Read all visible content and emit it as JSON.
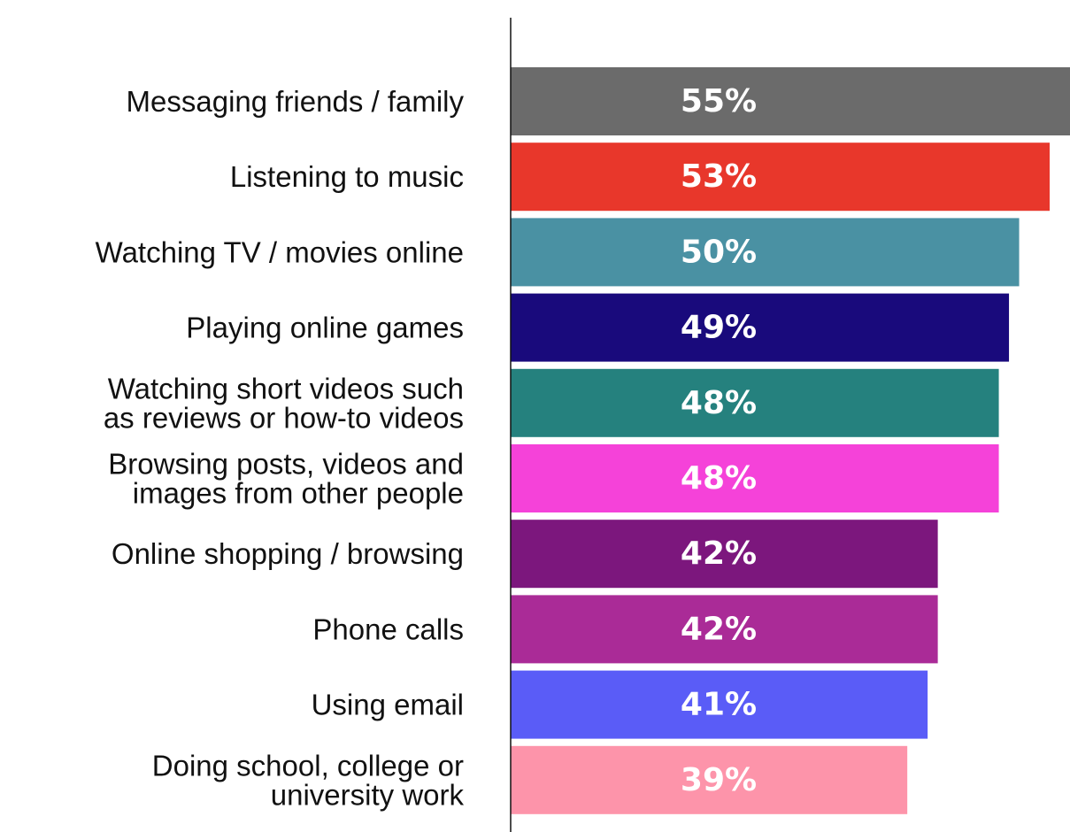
{
  "chart_data": {
    "type": "bar",
    "orientation": "horizontal",
    "title": "",
    "xlabel": "",
    "ylabel": "",
    "xlim": [
      0,
      55
    ],
    "grid": false,
    "legend": "none",
    "categories": [
      [
        "Messaging friends / family"
      ],
      [
        "Listening to music"
      ],
      [
        "Watching TV / movies online"
      ],
      [
        "Playing online games"
      ],
      [
        "Watching short videos such",
        "as reviews or how-to videos"
      ],
      [
        "Browsing posts, videos and",
        "images from other people"
      ],
      [
        "Online shopping / browsing"
      ],
      [
        "Phone calls"
      ],
      [
        "Using email"
      ],
      [
        "Doing school, college or",
        "university work"
      ]
    ],
    "values": [
      55,
      53,
      50,
      49,
      48,
      48,
      42,
      42,
      41,
      39
    ],
    "value_labels": [
      "55%",
      "53%",
      "50%",
      "49%",
      "48%",
      "48%",
      "42%",
      "42%",
      "41%",
      "39%"
    ],
    "colors": [
      "#6b6b6b",
      "#e8372b",
      "#4a91a3",
      "#190a7c",
      "#25817e",
      "#f542d9",
      "#7c177d",
      "#aa2b97",
      "#5a5cf7",
      "#fd94aa"
    ]
  }
}
